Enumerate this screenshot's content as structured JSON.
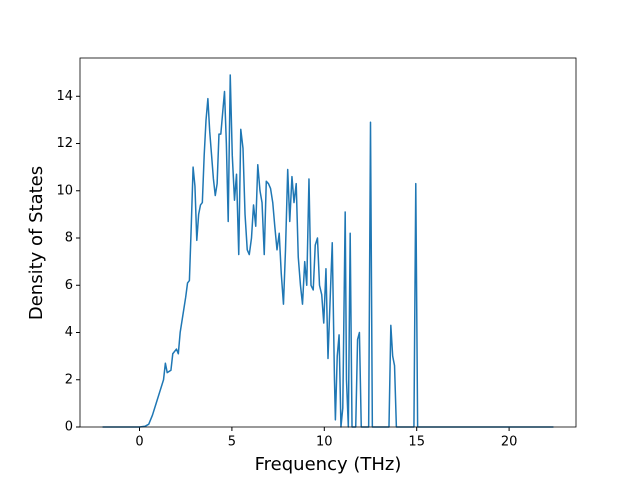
{
  "chart_data": {
    "type": "line",
    "xlabel": "Frequency (THz)",
    "ylabel": "Density of States",
    "color": "#1f77b4",
    "x": [
      -2,
      0,
      0.3,
      0.5,
      0.7,
      0.9,
      1.1,
      1.3,
      1.4,
      1.5,
      1.7,
      1.8,
      2.0,
      2.1,
      2.2,
      2.4,
      2.5,
      2.6,
      2.7,
      2.8,
      2.9,
      3.0,
      3.1,
      3.2,
      3.3,
      3.4,
      3.5,
      3.6,
      3.7,
      3.8,
      3.9,
      4.0,
      4.1,
      4.2,
      4.3,
      4.4,
      4.5,
      4.6,
      4.7,
      4.8,
      4.91,
      5.02,
      5.14,
      5.25,
      5.37,
      5.48,
      5.6,
      5.71,
      5.83,
      5.94,
      6.06,
      6.17,
      6.29,
      6.4,
      6.52,
      6.63,
      6.75,
      6.86,
      6.98,
      7.09,
      7.21,
      7.32,
      7.44,
      7.56,
      7.67,
      7.79,
      7.9,
      8.02,
      8.13,
      8.25,
      8.36,
      8.48,
      8.59,
      8.71,
      8.82,
      8.94,
      9.05,
      9.17,
      9.28,
      9.4,
      9.51,
      9.63,
      9.74,
      9.86,
      9.97,
      10.09,
      10.2,
      10.32,
      10.43,
      10.55,
      10.6,
      10.7,
      10.8,
      10.9,
      11.0,
      11.13,
      11.2,
      11.3,
      11.4,
      11.5,
      11.7,
      11.8,
      11.9,
      12.0,
      12.4,
      12.5,
      12.6,
      13.5,
      13.6,
      13.7,
      13.8,
      13.9,
      14.85,
      14.95,
      15.05,
      22.4
    ],
    "values": [
      0,
      0,
      0.03,
      0.12,
      0.5,
      1.0,
      1.5,
      2.0,
      2.7,
      2.3,
      2.4,
      3.1,
      3.3,
      3.1,
      4.0,
      5.0,
      5.5,
      6.1,
      6.2,
      8.5,
      11.0,
      10.2,
      7.9,
      9.0,
      9.4,
      9.5,
      11.5,
      13.0,
      13.9,
      12.5,
      11.5,
      10.5,
      9.8,
      10.3,
      12.4,
      12.4,
      13.3,
      14.2,
      12.0,
      8.7,
      14.9,
      11.5,
      9.6,
      10.7,
      7.3,
      12.6,
      11.8,
      9.0,
      7.5,
      7.3,
      8.0,
      9.4,
      8.5,
      11.1,
      10.0,
      9.5,
      7.3,
      10.4,
      10.3,
      10.1,
      9.5,
      8.5,
      7.5,
      8.2,
      6.5,
      5.2,
      7.5,
      10.9,
      8.7,
      10.6,
      9.5,
      10.3,
      7.2,
      6.0,
      5.2,
      7.0,
      6.0,
      10.5,
      6.0,
      5.8,
      7.7,
      8.0,
      6.0,
      5.6,
      4.4,
      6.7,
      2.9,
      5.5,
      7.8,
      2.0,
      0.3,
      3.0,
      3.9,
      0,
      0.8,
      9.1,
      2.0,
      0,
      8.2,
      0,
      0,
      3.7,
      4.0,
      0,
      0,
      12.9,
      0,
      0,
      4.3,
      3.0,
      2.6,
      0,
      0,
      10.3,
      0,
      0
    ],
    "xlim": [
      -3.22,
      23.62
    ],
    "xticks": [
      0,
      5,
      10,
      15,
      20
    ],
    "ylim": [
      0,
      15.62
    ],
    "yticks": [
      0,
      2,
      4,
      6,
      8,
      10,
      12,
      14
    ]
  }
}
